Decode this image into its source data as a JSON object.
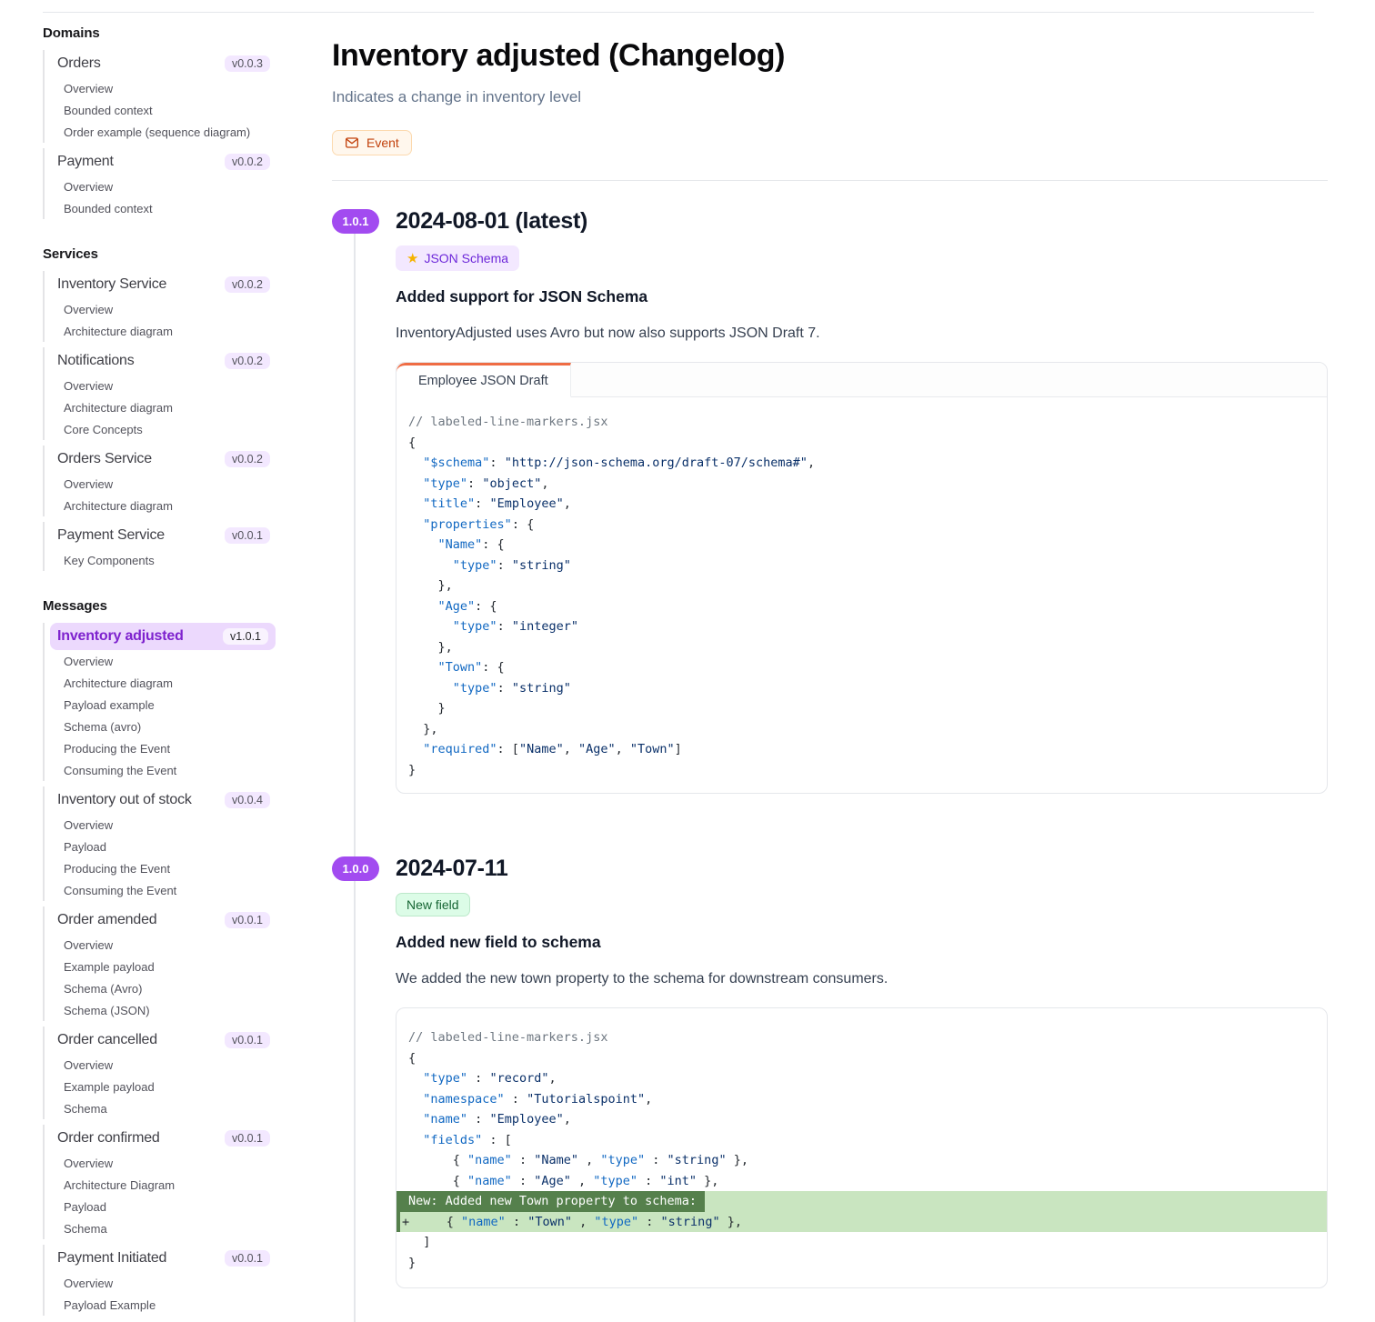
{
  "sidebar": {
    "sections": [
      {
        "title": "Domains",
        "groups": [
          {
            "name": "Orders",
            "version": "v0.0.3",
            "selected": false,
            "items": [
              "Overview",
              "Bounded context",
              "Order example (sequence diagram)"
            ]
          },
          {
            "name": "Payment",
            "version": "v0.0.2",
            "selected": false,
            "items": [
              "Overview",
              "Bounded context"
            ]
          }
        ]
      },
      {
        "title": "Services",
        "groups": [
          {
            "name": "Inventory Service",
            "version": "v0.0.2",
            "selected": false,
            "items": [
              "Overview",
              "Architecture diagram"
            ]
          },
          {
            "name": "Notifications",
            "version": "v0.0.2",
            "selected": false,
            "items": [
              "Overview",
              "Architecture diagram",
              "Core Concepts"
            ]
          },
          {
            "name": "Orders Service",
            "version": "v0.0.2",
            "selected": false,
            "items": [
              "Overview",
              "Architecture diagram"
            ]
          },
          {
            "name": "Payment Service",
            "version": "v0.0.1",
            "selected": false,
            "items": [
              "Key Components"
            ]
          }
        ]
      },
      {
        "title": "Messages",
        "groups": [
          {
            "name": "Inventory adjusted",
            "version": "v1.0.1",
            "selected": true,
            "items": [
              "Overview",
              "Architecture diagram",
              "Payload example",
              "Schema (avro)",
              "Producing the Event",
              "Consuming the Event"
            ]
          },
          {
            "name": "Inventory out of stock",
            "version": "v0.0.4",
            "selected": false,
            "items": [
              "Overview",
              "Payload",
              "Producing the Event",
              "Consuming the Event"
            ]
          },
          {
            "name": "Order amended",
            "version": "v0.0.1",
            "selected": false,
            "items": [
              "Overview",
              "Example payload",
              "Schema (Avro)",
              "Schema (JSON)"
            ]
          },
          {
            "name": "Order cancelled",
            "version": "v0.0.1",
            "selected": false,
            "items": [
              "Overview",
              "Example payload",
              "Schema"
            ]
          },
          {
            "name": "Order confirmed",
            "version": "v0.0.1",
            "selected": false,
            "items": [
              "Overview",
              "Architecture Diagram",
              "Payload",
              "Schema"
            ]
          },
          {
            "name": "Payment Initiated",
            "version": "v0.0.1",
            "selected": false,
            "items": [
              "Overview",
              "Payload Example"
            ]
          }
        ]
      }
    ]
  },
  "header": {
    "title": "Inventory adjusted (Changelog)",
    "subtitle": "Indicates a change in inventory level",
    "type_badge": {
      "label": "Event",
      "icon": "envelope-icon",
      "color": "#c2410c"
    }
  },
  "changelog": [
    {
      "version": "1.0.1",
      "date": "2024-08-01 (latest)",
      "tag": {
        "label": "JSON Schema",
        "icon": "star-icon",
        "color": "purple"
      },
      "heading": "Added support for JSON Schema",
      "body": "InventoryAdjusted uses Avro but now also supports JSON Draft 7.",
      "code": {
        "tab": "Employee JSON Draft",
        "lines": [
          {
            "type": "code",
            "tokens": [
              {
                "c": "cm",
                "t": "// labeled-line-markers.jsx"
              }
            ]
          },
          {
            "type": "code",
            "tokens": [
              {
                "c": "p",
                "t": "{"
              }
            ]
          },
          {
            "type": "code",
            "tokens": [
              {
                "c": "p",
                "t": "  "
              },
              {
                "c": "k",
                "t": "\"$schema\""
              },
              {
                "c": "p",
                "t": ": "
              },
              {
                "c": "s",
                "t": "\"http://json-schema.org/draft-07/schema#\""
              },
              {
                "c": "p",
                "t": ","
              }
            ]
          },
          {
            "type": "code",
            "tokens": [
              {
                "c": "p",
                "t": "  "
              },
              {
                "c": "k",
                "t": "\"type\""
              },
              {
                "c": "p",
                "t": ": "
              },
              {
                "c": "s",
                "t": "\"object\""
              },
              {
                "c": "p",
                "t": ","
              }
            ]
          },
          {
            "type": "code",
            "tokens": [
              {
                "c": "p",
                "t": "  "
              },
              {
                "c": "k",
                "t": "\"title\""
              },
              {
                "c": "p",
                "t": ": "
              },
              {
                "c": "s",
                "t": "\"Employee\""
              },
              {
                "c": "p",
                "t": ","
              }
            ]
          },
          {
            "type": "code",
            "tokens": [
              {
                "c": "p",
                "t": "  "
              },
              {
                "c": "k",
                "t": "\"properties\""
              },
              {
                "c": "p",
                "t": ": {"
              }
            ]
          },
          {
            "type": "code",
            "tokens": [
              {
                "c": "p",
                "t": "    "
              },
              {
                "c": "k",
                "t": "\"Name\""
              },
              {
                "c": "p",
                "t": ": {"
              }
            ]
          },
          {
            "type": "code",
            "tokens": [
              {
                "c": "p",
                "t": "      "
              },
              {
                "c": "k",
                "t": "\"type\""
              },
              {
                "c": "p",
                "t": ": "
              },
              {
                "c": "s",
                "t": "\"string\""
              }
            ]
          },
          {
            "type": "code",
            "tokens": [
              {
                "c": "p",
                "t": "    },"
              }
            ]
          },
          {
            "type": "code",
            "tokens": [
              {
                "c": "p",
                "t": "    "
              },
              {
                "c": "k",
                "t": "\"Age\""
              },
              {
                "c": "p",
                "t": ": {"
              }
            ]
          },
          {
            "type": "code",
            "tokens": [
              {
                "c": "p",
                "t": "      "
              },
              {
                "c": "k",
                "t": "\"type\""
              },
              {
                "c": "p",
                "t": ": "
              },
              {
                "c": "s",
                "t": "\"integer\""
              }
            ]
          },
          {
            "type": "code",
            "tokens": [
              {
                "c": "p",
                "t": "    },"
              }
            ]
          },
          {
            "type": "code",
            "tokens": [
              {
                "c": "p",
                "t": "    "
              },
              {
                "c": "k",
                "t": "\"Town\""
              },
              {
                "c": "p",
                "t": ": {"
              }
            ]
          },
          {
            "type": "code",
            "tokens": [
              {
                "c": "p",
                "t": "      "
              },
              {
                "c": "k",
                "t": "\"type\""
              },
              {
                "c": "p",
                "t": ": "
              },
              {
                "c": "s",
                "t": "\"string\""
              }
            ]
          },
          {
            "type": "code",
            "tokens": [
              {
                "c": "p",
                "t": "    }"
              }
            ]
          },
          {
            "type": "code",
            "tokens": [
              {
                "c": "p",
                "t": "  },"
              }
            ]
          },
          {
            "type": "code",
            "tokens": [
              {
                "c": "p",
                "t": "  "
              },
              {
                "c": "k",
                "t": "\"required\""
              },
              {
                "c": "p",
                "t": ": ["
              },
              {
                "c": "s",
                "t": "\"Name\""
              },
              {
                "c": "p",
                "t": ", "
              },
              {
                "c": "s",
                "t": "\"Age\""
              },
              {
                "c": "p",
                "t": ", "
              },
              {
                "c": "s",
                "t": "\"Town\""
              },
              {
                "c": "p",
                "t": "]"
              }
            ]
          },
          {
            "type": "code",
            "tokens": [
              {
                "c": "p",
                "t": "}"
              }
            ]
          }
        ]
      }
    },
    {
      "version": "1.0.0",
      "date": "2024-07-11",
      "tag": {
        "label": "New field",
        "icon": null,
        "color": "green"
      },
      "heading": "Added new field to schema",
      "body": "We added the new town property to the schema for downstream consumers.",
      "code": {
        "tab": null,
        "lines": [
          {
            "type": "code",
            "tokens": [
              {
                "c": "cm",
                "t": "// labeled-line-markers.jsx"
              }
            ]
          },
          {
            "type": "code",
            "tokens": [
              {
                "c": "p",
                "t": "{"
              }
            ]
          },
          {
            "type": "code",
            "tokens": [
              {
                "c": "p",
                "t": "  "
              },
              {
                "c": "k",
                "t": "\"type\""
              },
              {
                "c": "p",
                "t": " : "
              },
              {
                "c": "s",
                "t": "\"record\""
              },
              {
                "c": "p",
                "t": ","
              }
            ]
          },
          {
            "type": "code",
            "tokens": [
              {
                "c": "p",
                "t": "  "
              },
              {
                "c": "k",
                "t": "\"namespace\""
              },
              {
                "c": "p",
                "t": " : "
              },
              {
                "c": "s",
                "t": "\"Tutorialspoint\""
              },
              {
                "c": "p",
                "t": ","
              }
            ]
          },
          {
            "type": "code",
            "tokens": [
              {
                "c": "p",
                "t": "  "
              },
              {
                "c": "k",
                "t": "\"name\""
              },
              {
                "c": "p",
                "t": " : "
              },
              {
                "c": "s",
                "t": "\"Employee\""
              },
              {
                "c": "p",
                "t": ","
              }
            ]
          },
          {
            "type": "code",
            "tokens": [
              {
                "c": "p",
                "t": "  "
              },
              {
                "c": "k",
                "t": "\"fields\""
              },
              {
                "c": "p",
                "t": " : ["
              }
            ]
          },
          {
            "type": "code",
            "tokens": [
              {
                "c": "p",
                "t": "      { "
              },
              {
                "c": "k",
                "t": "\"name\""
              },
              {
                "c": "p",
                "t": " : "
              },
              {
                "c": "s",
                "t": "\"Name\""
              },
              {
                "c": "p",
                "t": " , "
              },
              {
                "c": "k",
                "t": "\"type\""
              },
              {
                "c": "p",
                "t": " : "
              },
              {
                "c": "s",
                "t": "\"string\""
              },
              {
                "c": "p",
                "t": " },"
              }
            ]
          },
          {
            "type": "code",
            "tokens": [
              {
                "c": "p",
                "t": "      { "
              },
              {
                "c": "k",
                "t": "\"name\""
              },
              {
                "c": "p",
                "t": " : "
              },
              {
                "c": "s",
                "t": "\"Age\""
              },
              {
                "c": "p",
                "t": " , "
              },
              {
                "c": "k",
                "t": "\"type\""
              },
              {
                "c": "p",
                "t": " : "
              },
              {
                "c": "s",
                "t": "\"int\""
              },
              {
                "c": "p",
                "t": " },"
              }
            ]
          },
          {
            "type": "label",
            "text": "New: Added new Town property to schema:"
          },
          {
            "type": "add",
            "tokens": [
              {
                "c": "p",
                "t": "+     { "
              },
              {
                "c": "k",
                "t": "\"name\""
              },
              {
                "c": "p",
                "t": " : "
              },
              {
                "c": "s",
                "t": "\"Town\""
              },
              {
                "c": "p",
                "t": " , "
              },
              {
                "c": "k",
                "t": "\"type\""
              },
              {
                "c": "p",
                "t": " : "
              },
              {
                "c": "s",
                "t": "\"string\""
              },
              {
                "c": "p",
                "t": " },"
              }
            ]
          },
          {
            "type": "code",
            "tokens": [
              {
                "c": "p",
                "t": "  ]"
              }
            ]
          },
          {
            "type": "code",
            "tokens": [
              {
                "c": "p",
                "t": "}"
              }
            ]
          }
        ]
      }
    }
  ]
}
